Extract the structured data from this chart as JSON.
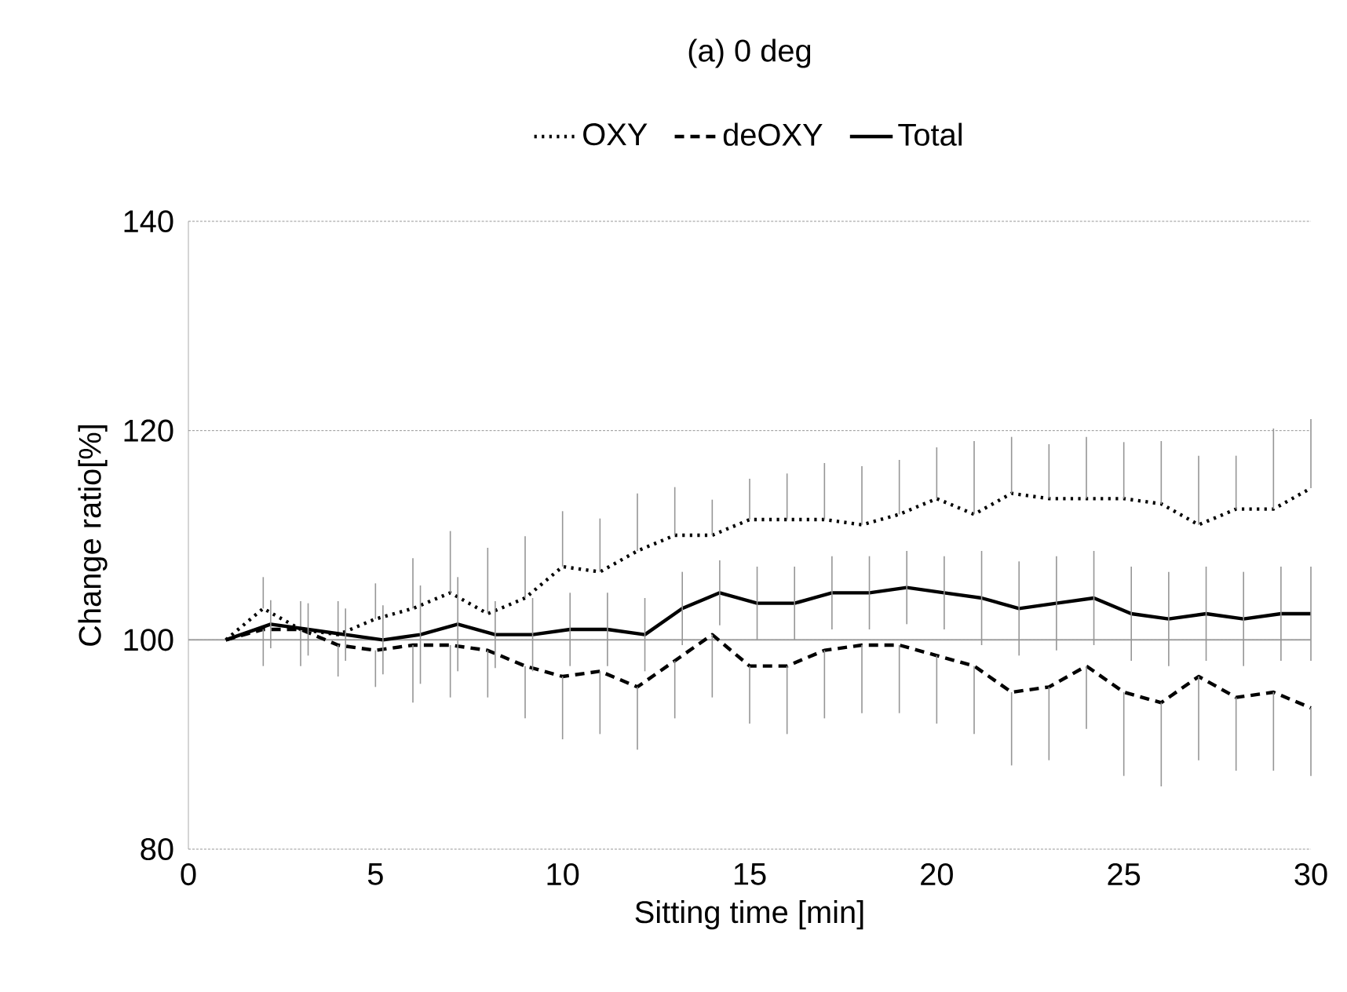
{
  "chart_data": {
    "type": "line",
    "title": "(a) 0 deg",
    "xlabel": "Sitting time [min]",
    "ylabel": "Change ratio[%]",
    "x": [
      1,
      2,
      3,
      4,
      5,
      6,
      7,
      8,
      9,
      10,
      11,
      12,
      13,
      14,
      15,
      16,
      17,
      18,
      19,
      20,
      21,
      22,
      23,
      24,
      25,
      26,
      27,
      28,
      29,
      30
    ],
    "series": [
      {
        "name": "OXY",
        "color": "#000000",
        "line_style": "dotted",
        "values": [
          100,
          103,
          101,
          100.5,
          102,
          103,
          104.5,
          102.5,
          104,
          107,
          106.5,
          108.5,
          110,
          110,
          111.5,
          111.5,
          111.5,
          111,
          112,
          113.5,
          112,
          114,
          113.5,
          113.5,
          113.5,
          113,
          111,
          112.5,
          112.5,
          114.5
        ],
        "errors": [
          null,
          [
            103,
            106
          ],
          [
            101,
            103.7
          ],
          [
            100.5,
            103.7
          ],
          [
            102,
            105.4
          ],
          [
            103,
            107.8
          ],
          [
            104.5,
            110.4
          ],
          [
            102.5,
            108.8
          ],
          [
            104,
            109.9
          ],
          [
            107,
            112.3
          ],
          [
            106.5,
            111.6
          ],
          [
            108.5,
            114
          ],
          [
            110,
            114.6
          ],
          [
            110,
            113.4
          ],
          [
            111.5,
            115.4
          ],
          [
            111.5,
            115.9
          ],
          [
            111.5,
            116.9
          ],
          [
            111,
            116.6
          ],
          [
            112,
            117.2
          ],
          [
            113.5,
            118.4
          ],
          [
            112,
            119
          ],
          [
            114,
            119.4
          ],
          [
            113.5,
            118.7
          ],
          [
            113.5,
            119.4
          ],
          [
            113.5,
            118.9
          ],
          [
            113,
            119
          ],
          [
            111,
            117.6
          ],
          [
            112.5,
            117.6
          ],
          [
            112.5,
            120.2
          ],
          [
            114.5,
            121.1
          ]
        ]
      },
      {
        "name": "deOXY",
        "color": "#000000",
        "line_style": "dashed",
        "values": [
          100,
          101,
          101,
          99.5,
          99,
          99.5,
          99.5,
          99,
          97.5,
          96.5,
          97,
          95.5,
          98,
          100.5,
          97.5,
          97.5,
          99,
          99.5,
          99.5,
          98.5,
          97.5,
          95,
          95.5,
          97.5,
          95,
          94,
          96.5,
          94.5,
          95,
          93.5
        ],
        "errors": [
          null,
          [
            97.5,
            101
          ],
          [
            97.5,
            101
          ],
          [
            96.5,
            99.5
          ],
          [
            95.5,
            99
          ],
          [
            94,
            99.5
          ],
          [
            94.5,
            99.5
          ],
          [
            94.5,
            99
          ],
          [
            92.5,
            97.5
          ],
          [
            90.5,
            96.5
          ],
          [
            91,
            97
          ],
          [
            89.5,
            95.5
          ],
          [
            92.5,
            98
          ],
          [
            94.5,
            100.5
          ],
          [
            92,
            97.5
          ],
          [
            91,
            97.5
          ],
          [
            92.5,
            99
          ],
          [
            93,
            99.5
          ],
          [
            93,
            99.5
          ],
          [
            92,
            98.5
          ],
          [
            91,
            97.5
          ],
          [
            88,
            95
          ],
          [
            88.5,
            95.5
          ],
          [
            91.5,
            97.5
          ],
          [
            87,
            95
          ],
          [
            86,
            94
          ],
          [
            88.5,
            96.5
          ],
          [
            87.5,
            94.5
          ],
          [
            87.5,
            95
          ],
          [
            87,
            93.5
          ]
        ]
      },
      {
        "name": "Total",
        "color": "#000000",
        "line_style": "solid",
        "x": [
          1,
          2.2,
          3.2,
          4.2,
          5.2,
          6.2,
          7.2,
          8.2,
          9.2,
          10.2,
          11.2,
          12.2,
          13.2,
          14.2,
          15.2,
          16.2,
          17.2,
          18.2,
          19.2,
          20.2,
          21.2,
          22.2,
          23.2,
          24.2,
          25.2,
          26.2,
          27.2,
          28.2,
          29.2,
          30
        ],
        "values": [
          100,
          101.5,
          101,
          100.5,
          100,
          100.5,
          101.5,
          100.5,
          100.5,
          101,
          101,
          100.5,
          103,
          104.5,
          103.5,
          103.5,
          104.5,
          104.5,
          105,
          104.5,
          104,
          103,
          103.5,
          104,
          102.5,
          102,
          102.5,
          102,
          102.5,
          102.5
        ],
        "errors": [
          null,
          2.3,
          2.5,
          2.5,
          3.3,
          4.7,
          4.5,
          3.2,
          3.5,
          3.5,
          3.5,
          3.5,
          3.5,
          3.1,
          3.5,
          3.5,
          3.5,
          3.5,
          3.5,
          3.5,
          4.5,
          4.5,
          4.5,
          4.5,
          4.5,
          4.5,
          4.5,
          4.5,
          4.5,
          4.5
        ]
      }
    ],
    "xlim": [
      0,
      30
    ],
    "xticks": [
      0,
      5,
      10,
      15,
      20,
      25,
      30
    ],
    "ylim": [
      80,
      140
    ],
    "yticks": [
      80,
      100,
      120,
      140
    ],
    "grid": "y",
    "legend": "top",
    "marker": "none",
    "ref_lines": [
      {
        "axis": "y",
        "value": 100,
        "color": "#a0a0a0"
      }
    ]
  }
}
